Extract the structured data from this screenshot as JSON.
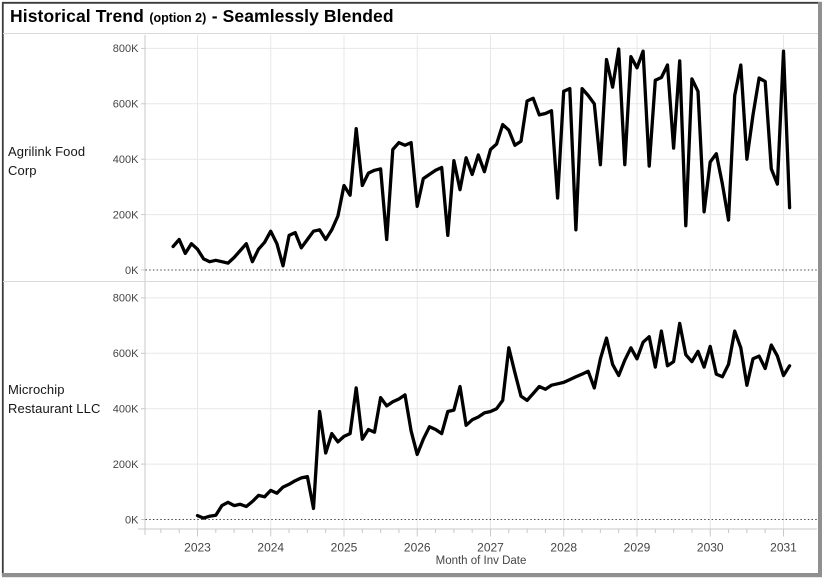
{
  "title": {
    "main": "Historical Trend",
    "option": "(option 2)",
    "suffix": "- Seamlessly Blended"
  },
  "rows": [
    {
      "label": "Agrilink Food Corp"
    },
    {
      "label": "Microchip Restaurant LLC"
    }
  ],
  "x_axis": {
    "label": "Month of Inv Date"
  },
  "colors": {
    "line": "#000000",
    "gridline": "#e7e7e7",
    "axis": "#c8c8c8",
    "zero_line": "#4a4a4a",
    "divider": "#d9d9d9",
    "tick_text": "#454545",
    "border_dark": "#3c3c3c",
    "border_gray": "#909090",
    "background": "#ffffff"
  },
  "chart_data": {
    "type": "line",
    "title": "Historical Trend (option 2) - Seamlessly Blended",
    "xlabel": "Month of Inv Date",
    "ylabel": "",
    "x_tick_labels": [
      "2023",
      "2024",
      "2025",
      "2026",
      "2027",
      "2028",
      "2029",
      "2030",
      "2031"
    ],
    "y_tick_values": [
      0,
      200,
      400,
      600,
      800
    ],
    "y_tick_labels": [
      "0K",
      "200K",
      "400K",
      "600K",
      "800K"
    ],
    "ylim": [
      0,
      800
    ],
    "values_unit": "K (thousands)",
    "interval": "monthly",
    "grid": true,
    "layout": "two stacked panels (small multiples), one per series, row labels at left",
    "series": [
      {
        "name": "Agrilink Food Corp",
        "start": "2022-09",
        "values": [
          85,
          110,
          60,
          95,
          75,
          40,
          30,
          35,
          30,
          25,
          45,
          70,
          95,
          30,
          75,
          100,
          140,
          95,
          15,
          125,
          135,
          80,
          110,
          140,
          145,
          110,
          145,
          195,
          305,
          270,
          510,
          305,
          350,
          360,
          365,
          110,
          435,
          460,
          450,
          460,
          230,
          330,
          345,
          360,
          370,
          125,
          395,
          290,
          405,
          345,
          415,
          355,
          435,
          455,
          525,
          505,
          450,
          465,
          610,
          620,
          560,
          565,
          575,
          260,
          645,
          655,
          145,
          655,
          630,
          600,
          380,
          760,
          660,
          798,
          380,
          770,
          730,
          790,
          375,
          685,
          695,
          740,
          440,
          755,
          160,
          690,
          645,
          210,
          390,
          420,
          310,
          180,
          630,
          740,
          400,
          560,
          693,
          680,
          365,
          310,
          790,
          225
        ]
      },
      {
        "name": "Microchip Restaurant LLC",
        "start": "2023-01",
        "values": [
          14,
          5,
          12,
          15,
          50,
          62,
          50,
          55,
          47,
          65,
          87,
          82,
          105,
          95,
          117,
          127,
          140,
          150,
          155,
          40,
          390,
          240,
          310,
          280,
          300,
          310,
          475,
          290,
          325,
          315,
          440,
          410,
          425,
          435,
          450,
          320,
          235,
          290,
          335,
          325,
          310,
          390,
          395,
          480,
          340,
          360,
          370,
          385,
          390,
          400,
          430,
          620,
          530,
          445,
          430,
          455,
          480,
          470,
          485,
          490,
          495,
          505,
          515,
          525,
          535,
          475,
          580,
          655,
          560,
          520,
          575,
          620,
          580,
          640,
          660,
          550,
          680,
          555,
          570,
          708,
          595,
          570,
          607,
          550,
          625,
          525,
          515,
          560,
          680,
          620,
          485,
          580,
          590,
          545,
          630,
          590,
          520,
          555
        ]
      }
    ]
  }
}
